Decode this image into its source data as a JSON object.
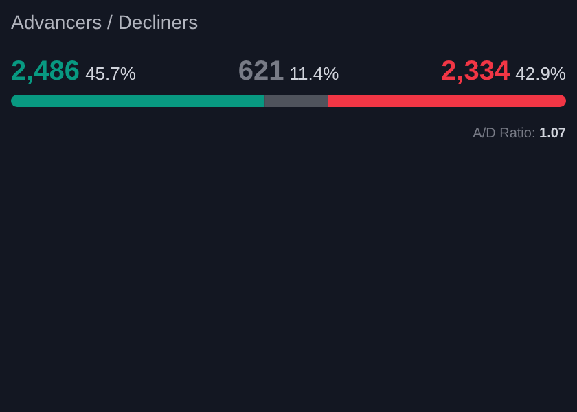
{
  "chart_data": {
    "type": "bar",
    "orientation": "horizontal",
    "stacked": true,
    "title": "Advancers / Decliners",
    "categories": [
      null
    ],
    "series": [
      {
        "color": "#089981",
        "values": [
          2486
        ],
        "value_labels": [
          "2,486"
        ]
      },
      {
        "color": "#4f535c",
        "values": [
          621
        ],
        "value_labels": [
          "621"
        ]
      },
      {
        "color": "#f23645",
        "values": [
          2334
        ],
        "value_labels": [
          "2,334"
        ]
      }
    ],
    "annotations": [
      "45.7%",
      "11.4%",
      "42.9%",
      "A/D Ratio: 1.07"
    ]
  }
}
